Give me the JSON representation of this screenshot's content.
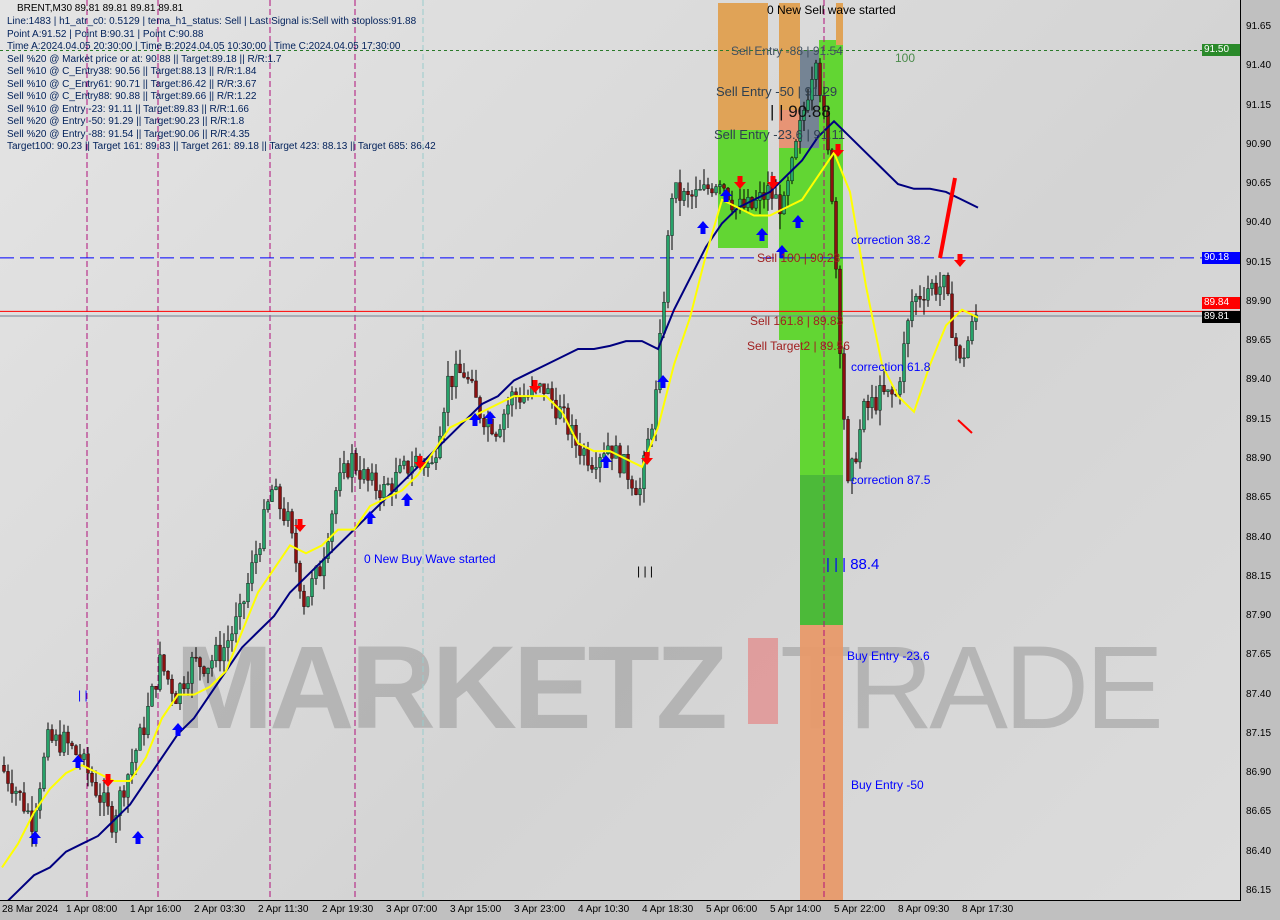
{
  "header": {
    "symbol_line": "BRENT,M30  89.81 89.81 89.81 89.81"
  },
  "info_lines": [
    "Line:1483 | h1_atr_c0: 0.5129 | tema_h1_status: Sell | Last Signal is:Sell with stoploss:91.88",
    "Point A:91.52 | Point B:90.31 | Point C:90.88",
    "Time A:2024.04.05 20:30:00 | Time B:2024.04.05 10:30:00 | Time C:2024.04.05 17:30:00",
    "Sell %20 @ Market price or at: 90.88 || Target:89.18 || R/R:1.7",
    "Sell %10 @ C_Entry38: 90.56 || Target:88.13 || R/R:1.84",
    "Sell %10 @ C_Entry61: 90.71 || Target:86.42 || R/R:3.67",
    "Sell %10 @ C_Entry88: 90.88 || Target:89.66 || R/R:1.22",
    "Sell %10 @ Entry -23: 91.11 || Target:89.83 || R/R:1.66",
    "Sell %20 @ Entry -50: 91.29 || Target:90.23 || R/R:1.8",
    "Sell %20 @ Entry -88: 91.54 || Target:90.06 || R/R:4.35",
    "Target100: 90.23 || Target 161: 89.83 || Target 261: 89.18 || Target 423: 88.13 || Target 685: 86.42"
  ],
  "annotations": {
    "new_sell": "0 New Sell wave started",
    "sell_88": "Sell Entry -88 | 91.54",
    "hundred": "100",
    "sell_50": "Sell Entry -50 | 91.29",
    "pt_c": "| | 90.88",
    "sell_23": "Sell Entry -23.6 | 91.11",
    "corr38": "correction 38.2",
    "sell100": "Sell 100 | 90.23",
    "sell161": "Sell 161.8 | 89.83",
    "target2": "Sell Target2 | 89.56",
    "corr61": "correction 61.8",
    "corr87": "correction 87.5",
    "lvl884": "| | | 88.4",
    "buy23": "Buy Entry -23.6",
    "buy50": "Buy Entry -50",
    "new_buy": "0 New Buy Wave started",
    "bars1": "| | |",
    "bars2": "| |"
  },
  "watermark": "MARKETZI TRADE",
  "price_tags": {
    "green": "91.50",
    "blue": "90.18",
    "red": "89.84",
    "black": "89.81"
  },
  "colors": {
    "bull": "#26a269",
    "bear": "#8b1010",
    "tema": "#000080",
    "ma": "#ffff00",
    "green_zone": "#5cd62a",
    "orange_zone": "#e0a050"
  },
  "chart_data": {
    "type": "candlestick",
    "timeframe": "M30",
    "ylim": [
      86.15,
      91.65
    ],
    "yticks": [
      "91.65",
      "91.40",
      "91.15",
      "90.90",
      "90.65",
      "90.40",
      "90.15",
      "89.90",
      "89.65",
      "89.40",
      "89.15",
      "88.90",
      "88.65",
      "88.40",
      "88.15",
      "87.90",
      "87.65",
      "87.40",
      "87.15",
      "86.90",
      "86.65",
      "86.40",
      "86.15"
    ],
    "xticks": [
      "28 Mar 2024",
      "1 Apr 08:00",
      "1 Apr 16:00",
      "2 Apr 03:30",
      "2 Apr 11:30",
      "2 Apr 19:30",
      "3 Apr 07:00",
      "3 Apr 15:00",
      "3 Apr 23:00",
      "4 Apr 10:30",
      "4 Apr 18:30",
      "5 Apr 06:00",
      "5 Apr 14:00",
      "5 Apr 22:00",
      "8 Apr 09:30",
      "8 Apr 17:30"
    ],
    "x": [
      "28 Mar 16:00",
      "28 Mar 18:00",
      "28 Mar 20:00",
      "28 Mar 22:00",
      "1 Apr 08:00",
      "1 Apr 10:00",
      "1 Apr 12:00",
      "1 Apr 14:00",
      "1 Apr 16:00",
      "1 Apr 18:00",
      "1 Apr 20:00",
      "1 Apr 22:00",
      "2 Apr 03:30",
      "2 Apr 05:30",
      "2 Apr 07:30",
      "2 Apr 09:30",
      "2 Apr 11:30",
      "2 Apr 13:30",
      "2 Apr 15:30",
      "2 Apr 17:30",
      "2 Apr 19:30",
      "2 Apr 21:30",
      "2 Apr 23:30",
      "3 Apr 01:30",
      "3 Apr 07:00",
      "3 Apr 09:00",
      "3 Apr 11:00",
      "3 Apr 13:00",
      "3 Apr 15:00",
      "3 Apr 17:00",
      "3 Apr 19:00",
      "3 Apr 21:00",
      "3 Apr 23:00",
      "4 Apr 01:00",
      "4 Apr 03:00",
      "4 Apr 05:00",
      "4 Apr 10:30",
      "4 Apr 12:30",
      "4 Apr 14:30",
      "4 Apr 16:30",
      "4 Apr 18:30",
      "4 Apr 20:30",
      "4 Apr 22:30",
      "5 Apr 00:30",
      "5 Apr 06:00",
      "5 Apr 08:00",
      "5 Apr 10:00",
      "5 Apr 12:00",
      "5 Apr 14:00",
      "5 Apr 16:00",
      "5 Apr 18:00",
      "5 Apr 20:00",
      "5 Apr 22:00",
      "8 Apr 03:30",
      "8 Apr 05:30",
      "8 Apr 07:30",
      "8 Apr 09:30",
      "8 Apr 11:30",
      "8 Apr 13:30",
      "8 Apr 15:30",
      "8 Apr 17:30",
      "8 Apr 19:30"
    ],
    "close": [
      86.95,
      86.8,
      86.6,
      87.1,
      87.1,
      87.0,
      86.8,
      86.6,
      86.9,
      87.2,
      87.6,
      87.4,
      87.6,
      87.6,
      87.7,
      87.9,
      88.3,
      88.7,
      88.5,
      88.0,
      88.2,
      88.7,
      88.9,
      88.75,
      88.7,
      88.8,
      88.9,
      88.85,
      89.4,
      89.45,
      89.2,
      89.1,
      89.3,
      89.3,
      89.35,
      89.2,
      89.0,
      88.9,
      89.0,
      88.85,
      88.7,
      89.3,
      90.6,
      90.55,
      90.6,
      90.7,
      90.5,
      90.5,
      90.6,
      90.5,
      91.0,
      91.5,
      90.6,
      88.7,
      89.2,
      89.3,
      89.3,
      89.9,
      90.0,
      90.0,
      89.5,
      89.81
    ],
    "series": [
      {
        "values": [
          86.05,
          86.15,
          86.25,
          86.3,
          86.4,
          86.45,
          86.5,
          86.6,
          86.7,
          86.85,
          87.0,
          87.15,
          87.25,
          87.4,
          87.55,
          87.7,
          87.8,
          87.9,
          88.05,
          88.15,
          88.25,
          88.35,
          88.45,
          88.55,
          88.65,
          88.75,
          88.85,
          88.95,
          89.05,
          89.15,
          89.25,
          89.3,
          89.4,
          89.45,
          89.5,
          89.55,
          89.6,
          89.6,
          89.62,
          89.65,
          89.65,
          89.6,
          89.85,
          90.05,
          90.25,
          90.4,
          90.5,
          90.55,
          90.6,
          90.7,
          90.8,
          90.95,
          91.05,
          90.95,
          90.85,
          90.75,
          90.65,
          90.62,
          90.62,
          90.6,
          90.55,
          90.5
        ],
        "color": "#000080"
      },
      {
        "values": [
          86.3,
          86.45,
          86.65,
          86.8,
          86.9,
          86.95,
          86.9,
          86.85,
          86.85,
          87.0,
          87.25,
          87.4,
          87.4,
          87.45,
          87.55,
          87.8,
          88.05,
          88.2,
          88.35,
          88.3,
          88.35,
          88.45,
          88.45,
          88.6,
          88.65,
          88.7,
          88.8,
          88.95,
          89.1,
          89.15,
          89.2,
          89.25,
          89.3,
          89.3,
          89.3,
          89.2,
          89.0,
          88.95,
          88.95,
          88.9,
          88.85,
          89.1,
          89.5,
          89.8,
          90.2,
          90.55,
          90.5,
          90.45,
          90.45,
          90.5,
          90.55,
          90.7,
          90.85,
          90.6,
          90.0,
          89.5,
          89.3,
          89.2,
          89.5,
          89.75,
          89.85,
          89.8
        ],
        "color": "#ffff00"
      }
    ],
    "hlines": [
      {
        "value": 91.5,
        "color": "#2a7a2a",
        "style": "dotted"
      },
      {
        "value": 90.18,
        "color": "#0000ff",
        "style": "dashed"
      },
      {
        "value": 89.84,
        "color": "#ff0000",
        "style": "solid"
      },
      {
        "value": 89.81,
        "color": "#708090",
        "style": "solid"
      }
    ]
  }
}
